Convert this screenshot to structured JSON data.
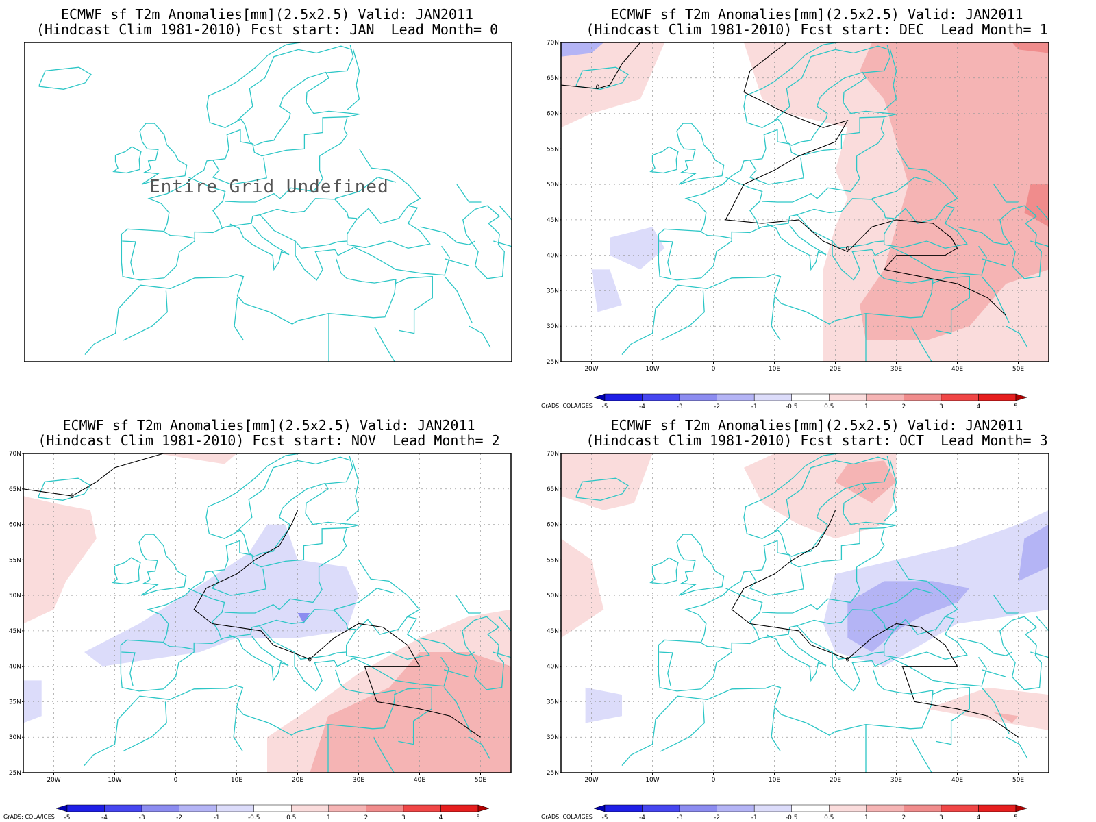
{
  "panels": [
    {
      "id": "p0",
      "title_line1": "ECMWF sf T2m Anomalies[mm](2.5x2.5) Valid: JAN2011",
      "title_line2": "(Hindcast Clim 1981-2010) Fcst start: JAN  Lead Month= 0",
      "undefined_message": "Entire Grid Undefined",
      "has_axes": false,
      "has_colorbar": false
    },
    {
      "id": "p1",
      "title_line1": "ECMWF sf T2m Anomalies[mm](2.5x2.5) Valid: JAN2011",
      "title_line2": "(Hindcast Clim 1981-2010) Fcst start: DEC  Lead Month= 1",
      "has_axes": true,
      "has_colorbar": true
    },
    {
      "id": "p2",
      "title_line1": "ECMWF sf T2m Anomalies[mm](2.5x2.5) Valid: JAN2011",
      "title_line2": "(Hindcast Clim 1981-2010) Fcst start: NOV  Lead Month= 2",
      "has_axes": true,
      "has_colorbar": true
    },
    {
      "id": "p3",
      "title_line1": "ECMWF sf T2m Anomalies[mm](2.5x2.5) Valid: JAN2011",
      "title_line2": "(Hindcast Clim 1981-2010) Fcst start: OCT  Lead Month= 3",
      "has_axes": true,
      "has_colorbar": true
    }
  ],
  "axes": {
    "lat_ticks": [
      "70N",
      "65N",
      "60N",
      "55N",
      "50N",
      "45N",
      "40N",
      "35N",
      "30N",
      "25N"
    ],
    "lon_ticks": [
      "20W",
      "10W",
      "0",
      "10E",
      "20E",
      "30E",
      "40E",
      "50E"
    ]
  },
  "colorbar": {
    "labels": [
      "-5",
      "-4",
      "-3",
      "-2",
      "-1",
      "-0.5",
      "0.5",
      "1",
      "2",
      "3",
      "4",
      "5"
    ],
    "colors": [
      "#0000b0",
      "#1e1ee6",
      "#4646f0",
      "#8c8cf0",
      "#b4b4f5",
      "#dcdcfa",
      "#ffffff",
      "#fadcdc",
      "#f5b4b4",
      "#f08c8c",
      "#f04646",
      "#e61e1e",
      "#b00000"
    ]
  },
  "credit": "GrADS: COLA/IGES",
  "contour_label": "0",
  "colors": {
    "coast": "#2cc6c6",
    "contour": "#000000"
  }
}
